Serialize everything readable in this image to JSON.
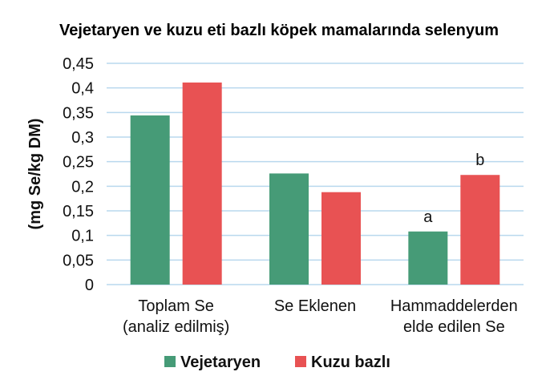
{
  "chart_data": {
    "type": "bar",
    "title": "Vejetaryen ve kuzu eti bazlı köpek mamalarında selenyum",
    "xlabel": "",
    "ylabel": "(mg Se/kg DM)",
    "ylim": [
      0,
      0.45
    ],
    "yticks": [
      "0",
      "0,05",
      "0,1",
      "0,15",
      "0,2",
      "0,25",
      "0,3",
      "0,35",
      "0,4",
      "0,45"
    ],
    "categories": [
      [
        "Toplam Se",
        "(analiz edilmiş)"
      ],
      [
        "Se Eklenen"
      ],
      [
        "Hammaddelerden",
        "elde edilen Se"
      ]
    ],
    "series": [
      {
        "name": "Vejetaryen",
        "color": "#469b77",
        "values": [
          0.344,
          0.226,
          0.108
        ]
      },
      {
        "name": "Kuzu bazlı",
        "color": "#e85253",
        "values": [
          0.411,
          0.188,
          0.223
        ]
      }
    ],
    "annotations": [
      {
        "category": 2,
        "series": 0,
        "text": "a"
      },
      {
        "category": 2,
        "series": 1,
        "text": "b"
      }
    ],
    "grid": true,
    "gridline_color": "#b9d8ee",
    "legend_position": "bottom"
  }
}
